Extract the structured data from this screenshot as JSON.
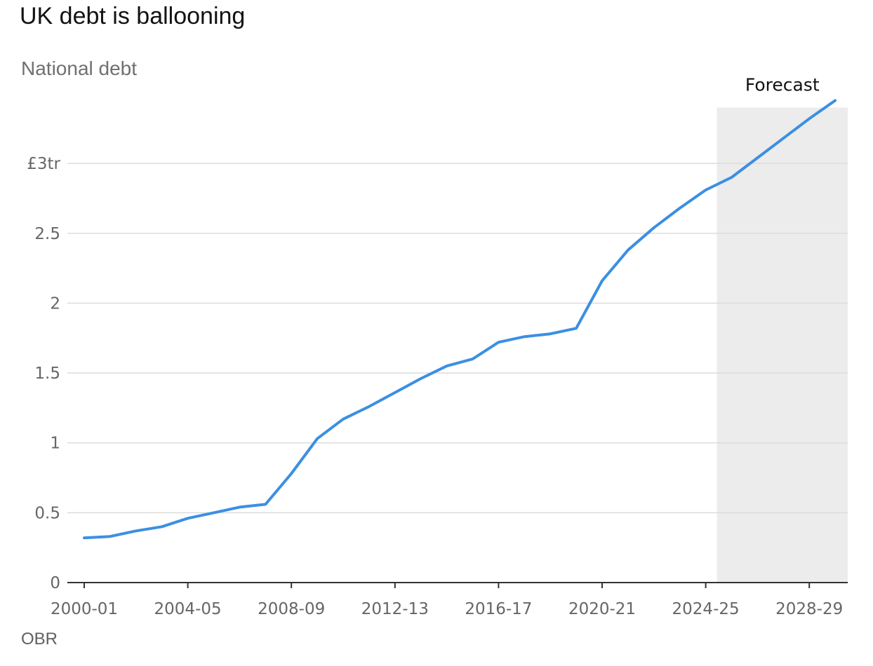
{
  "title": "UK debt is ballooning",
  "subtitle": "National debt",
  "source": "OBR",
  "chart_data": {
    "type": "line",
    "x": [
      "2000-01",
      "2001-02",
      "2002-03",
      "2003-04",
      "2004-05",
      "2005-06",
      "2006-07",
      "2007-08",
      "2008-09",
      "2009-10",
      "2010-11",
      "2011-12",
      "2012-13",
      "2013-14",
      "2014-15",
      "2015-16",
      "2016-17",
      "2017-18",
      "2018-19",
      "2019-20",
      "2020-21",
      "2021-22",
      "2022-23",
      "2023-24",
      "2024-25",
      "2025-26",
      "2026-27",
      "2027-28",
      "2028-29",
      "2029-30"
    ],
    "series": [
      {
        "values": [
          0.32,
          0.33,
          0.37,
          0.4,
          0.46,
          0.5,
          0.54,
          0.56,
          0.78,
          1.03,
          1.17,
          1.26,
          1.36,
          1.46,
          1.55,
          1.6,
          1.72,
          1.76,
          1.78,
          1.82,
          2.16,
          2.38,
          2.54,
          2.68,
          2.81,
          2.9,
          3.04,
          3.18,
          3.32,
          3.45
        ],
        "color": "#3b8fe3"
      }
    ],
    "x_tick_labels": [
      "2000-01",
      "2004-05",
      "2008-09",
      "2012-13",
      "2016-17",
      "2020-21",
      "2024-25",
      "2028-29"
    ],
    "y_ticks": [
      0,
      0.5,
      1,
      1.5,
      2,
      2.5,
      3
    ],
    "y_tick_labels": [
      "0",
      "0.5",
      "1",
      "1.5",
      "2",
      "2.5",
      "£3tr"
    ],
    "ylim": [
      0,
      3.4
    ],
    "forecast": {
      "label": "Forecast",
      "start": "2024-25",
      "shade_color": "#ececec"
    },
    "grid": true
  }
}
